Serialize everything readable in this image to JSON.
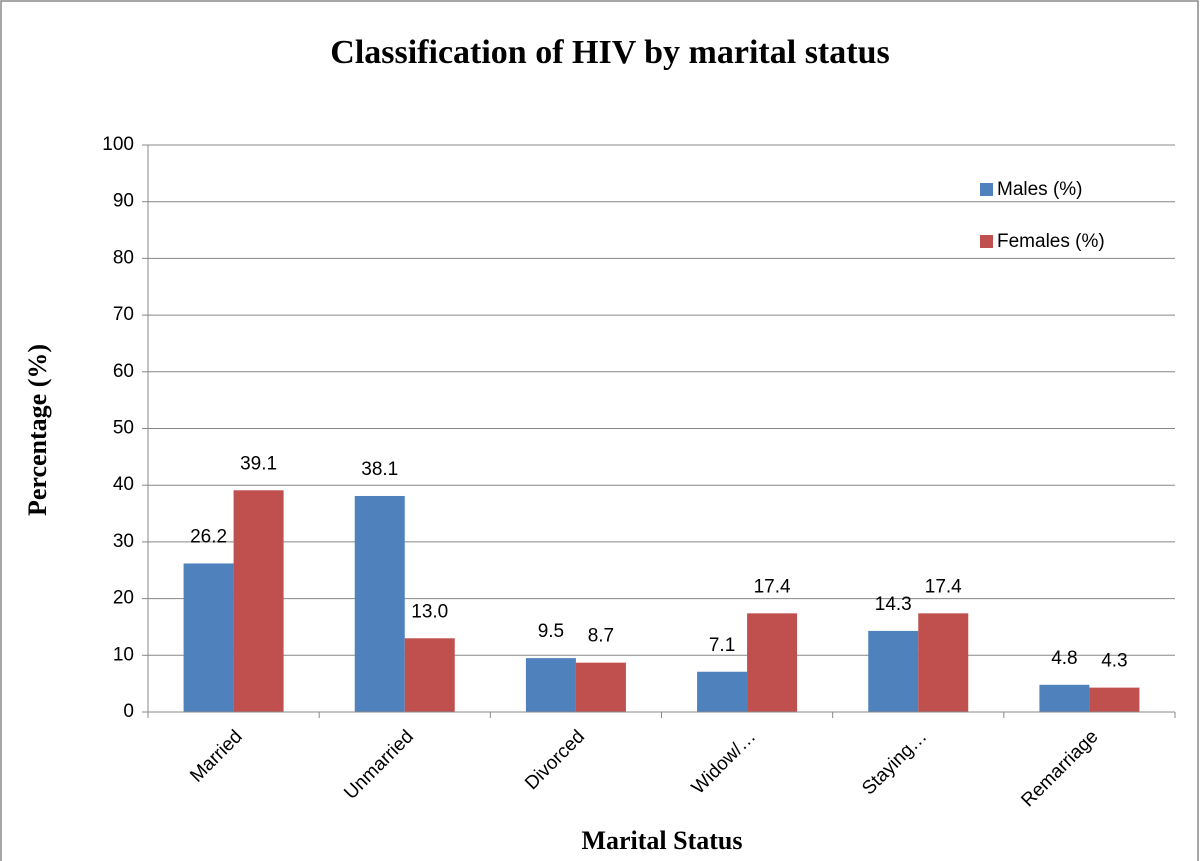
{
  "chart_data": {
    "type": "bar",
    "title": "Classification of HIV by marital status",
    "x_label": "Marital Status",
    "y_label": "Percentage (%)",
    "categories": [
      "Married",
      "Unmarried",
      "Divorced",
      "Widow/…",
      "Staying…",
      "Remarriage"
    ],
    "series": [
      {
        "name": "Males (%)",
        "color": "#4f81bd",
        "values": [
          26.2,
          38.1,
          9.5,
          7.1,
          14.3,
          4.8
        ],
        "value_labels": [
          "26.2",
          "38.1",
          "9.5",
          "7.1",
          "14.3",
          "4.8"
        ]
      },
      {
        "name": "Females (%)",
        "color": "#c0504d",
        "values": [
          39.1,
          13.0,
          8.7,
          17.4,
          17.4,
          4.3
        ],
        "value_labels": [
          "39.1",
          "13.0",
          "8.7",
          "17.4",
          "17.4",
          "4.3"
        ]
      }
    ],
    "ylim": [
      0,
      100
    ],
    "yticks": [
      0,
      10,
      20,
      30,
      40,
      50,
      60,
      70,
      80,
      90,
      100
    ],
    "grid": true,
    "legend": "upper right"
  }
}
